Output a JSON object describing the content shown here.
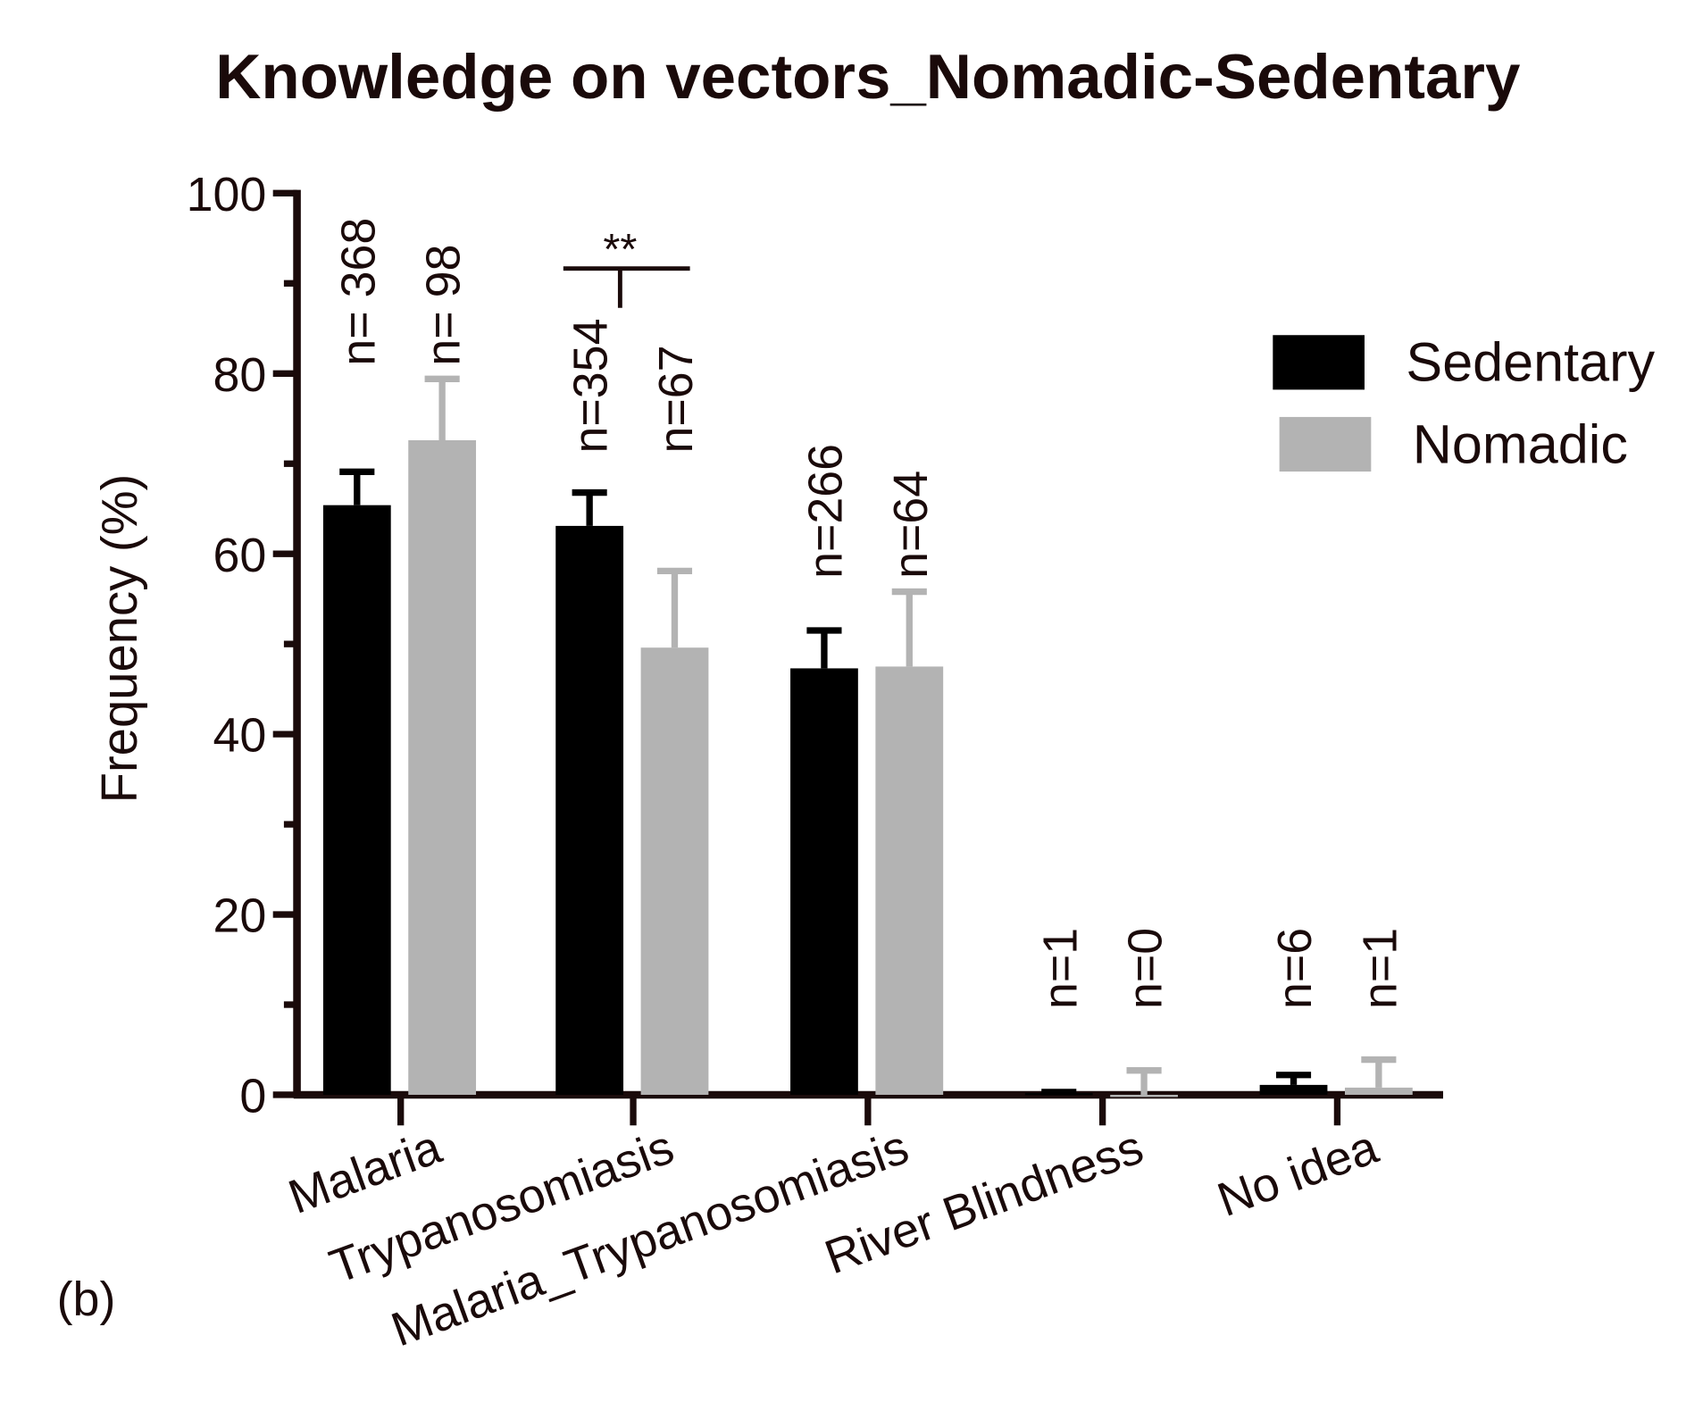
{
  "chart_data": {
    "type": "bar",
    "title": "Knowledge on vectors_Nomadic-Sedentary",
    "ylabel": "Frequency (%)",
    "panel_label": "(b)",
    "categories": [
      "Malaria",
      "Trypanosomiasis",
      "Malaria_Trypanosomiasis",
      "River Blindness",
      "No idea"
    ],
    "series": [
      {
        "name": "Sedentary",
        "color": "#000000",
        "values": [
          65.4,
          63.1,
          47.3,
          0.2,
          1.1
        ],
        "errors": [
          3.7,
          3.7,
          4.2,
          0.1,
          1.1
        ],
        "annotations": [
          "n= 368",
          "n=354",
          "n=266",
          "n=1",
          "n=6"
        ]
      },
      {
        "name": "Nomadic",
        "color": "#b3b3b3",
        "values": [
          72.6,
          49.6,
          47.5,
          0,
          0.8
        ],
        "errors": [
          6.8,
          8.5,
          8.3,
          2.7,
          3.1
        ],
        "annotations": [
          "n= 98",
          "n=67",
          "n=64",
          "n=0",
          "n=1"
        ]
      }
    ],
    "significance": {
      "label": "**",
      "category": "Trypanosomiasis"
    },
    "ylim": [
      0,
      100
    ],
    "yticks": [
      0,
      20,
      40,
      60,
      80,
      100
    ],
    "yminorticks": [
      10,
      30,
      50,
      70,
      90
    ],
    "legend": "upper right"
  }
}
